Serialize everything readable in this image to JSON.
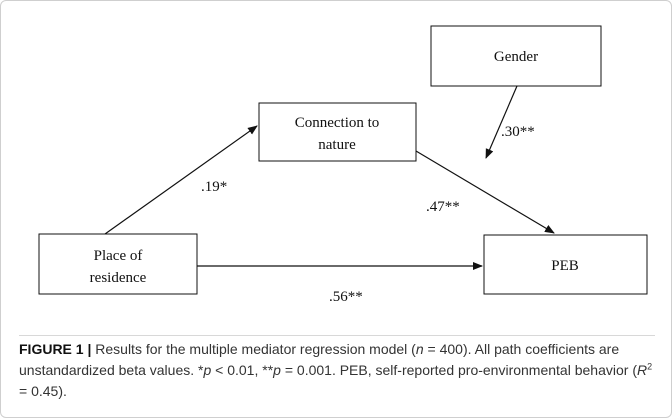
{
  "figure": {
    "nodes": [
      {
        "lines": [
          "Gender"
        ]
      },
      {
        "lines": [
          "Connection to",
          "nature"
        ]
      },
      {
        "lines": [
          "Place of",
          "residence"
        ]
      },
      {
        "lines": [
          "PEB"
        ]
      }
    ],
    "edges": [
      {
        "label": ".19*"
      },
      {
        "label": ".30**"
      },
      {
        "label": ".47**"
      },
      {
        "label": ".56**"
      }
    ],
    "caption": {
      "label": "FIGURE 1 |",
      "parts": [
        " Results for the multiple mediator regression model (",
        "n",
        " = 400). All path coefficients are unstandardized beta values. *",
        "p",
        " < 0.01, **",
        "p",
        " = 0.001. PEB, self-reported pro-environmental behavior (",
        "R",
        "2",
        " = 0.45)."
      ]
    }
  }
}
